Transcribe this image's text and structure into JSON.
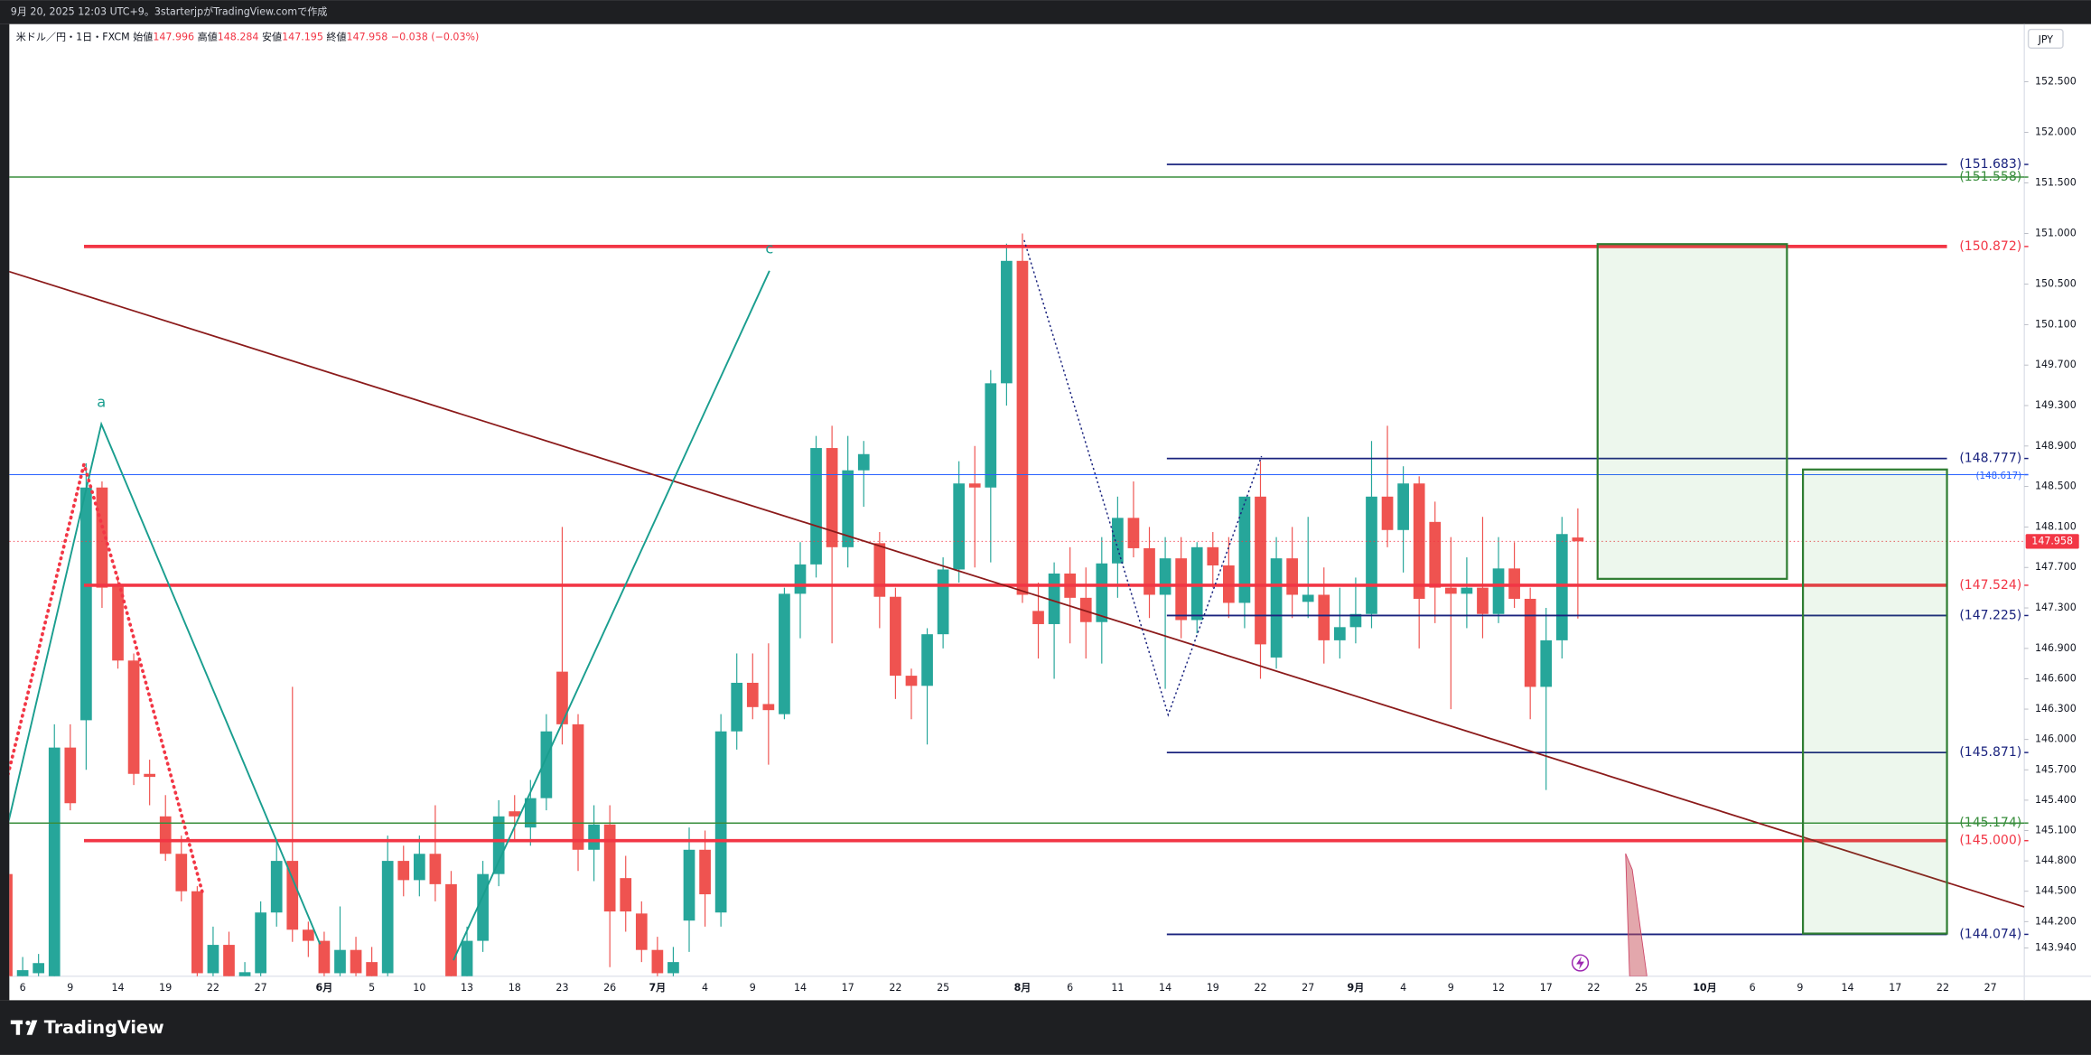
{
  "header": {
    "caption": "9月 20, 2025 12:03 UTC+9。3starterjpがTradingView.comで作成"
  },
  "footer": {
    "brand": "TradingView"
  },
  "chart_data": {
    "type": "candlestick",
    "symbol": "米ドル／円・1日・FXCM",
    "legend_labels": {
      "open": "始値",
      "high": "高値",
      "low": "安値",
      "close": "終値"
    },
    "change": {
      "value": -0.038,
      "label": "−0.038"
    },
    "change_pct": {
      "value": -0.03,
      "label": "(−0.03%)"
    },
    "y_unit": "JPY",
    "up_color": "#26a69a",
    "down_color": "#ef5350",
    "categories": [
      null,
      "6",
      null,
      null,
      "9",
      null,
      null,
      "14",
      null,
      null,
      "19",
      null,
      null,
      "22",
      null,
      null,
      "27",
      null,
      null,
      null,
      "6月",
      null,
      null,
      "5",
      null,
      null,
      "10",
      null,
      null,
      "13",
      null,
      null,
      "18",
      null,
      null,
      "23",
      null,
      null,
      "26",
      null,
      null,
      "7月",
      null,
      null,
      "4",
      null,
      null,
      "9",
      null,
      null,
      "14",
      null,
      null,
      "17",
      null,
      null,
      "22",
      null,
      null,
      "25",
      null,
      null,
      null,
      null,
      "8月",
      null,
      null,
      "6",
      null,
      null,
      "11",
      null,
      null,
      "14",
      null,
      null,
      "19",
      null,
      null,
      "22",
      null,
      null,
      "27",
      null,
      null,
      "9月",
      null,
      null,
      "4",
      null,
      null,
      "9",
      null,
      null,
      "12",
      null,
      null,
      "17",
      null,
      null,
      "22",
      null,
      null,
      "25",
      null,
      null,
      null,
      "10月",
      null,
      null,
      "6",
      null,
      null,
      "9",
      null,
      null,
      "14",
      null,
      null,
      "17",
      null,
      null,
      "22",
      null,
      null,
      "27"
    ],
    "ohlc": {
      "open": [
        144.67,
        143.62,
        143.69,
        143.62,
        145.92,
        146.19,
        148.49,
        147.52,
        146.78,
        145.66,
        145.24,
        144.87,
        144.5,
        143.69,
        143.97,
        143.62,
        143.69,
        144.29,
        144.8,
        144.12,
        144.01,
        143.69,
        143.92,
        143.8,
        143.69,
        144.8,
        144.61,
        144.87,
        144.57,
        143.62,
        144.01,
        144.67,
        145.29,
        145.13,
        145.42,
        146.67,
        146.15,
        144.91,
        145.16,
        144.63,
        144.28,
        143.92,
        143.69,
        144.21,
        144.91,
        144.29,
        146.08,
        146.56,
        146.35,
        146.25,
        147.44,
        147.73,
        148.88,
        147.9,
        148.66,
        147.94,
        147.41,
        146.63,
        146.53,
        147.04,
        147.68,
        148.53,
        148.49,
        149.52,
        150.73,
        147.27,
        147.14,
        147.64,
        147.4,
        147.16,
        147.74,
        148.19,
        147.89,
        147.43,
        147.79,
        147.18,
        147.9,
        147.72,
        147.35,
        148.4,
        146.81,
        147.79,
        147.36,
        147.43,
        146.98,
        147.11,
        147.24,
        148.4,
        148.07,
        148.53,
        148.15,
        147.5,
        147.44,
        147.5,
        147.24,
        147.69,
        147.39,
        146.52,
        146.98,
        147.996,
        null,
        null,
        null,
        null,
        null,
        null,
        null,
        null,
        null,
        null,
        null,
        null,
        null,
        null,
        null,
        null,
        null,
        null,
        null,
        null,
        null,
        null,
        null,
        null,
        null,
        null
      ],
      "high": [
        144.8,
        143.85,
        143.88,
        146.15,
        146.15,
        148.73,
        148.55,
        147.62,
        146.85,
        145.8,
        145.45,
        145.05,
        144.55,
        144.15,
        144.1,
        143.8,
        144.4,
        145.0,
        146.52,
        144.2,
        144.1,
        144.35,
        144.05,
        143.95,
        145.05,
        144.95,
        145.05,
        145.35,
        144.7,
        144.15,
        144.8,
        145.4,
        145.45,
        145.6,
        146.25,
        148.1,
        146.25,
        145.35,
        145.35,
        144.85,
        144.4,
        144.05,
        143.95,
        145.13,
        145.1,
        146.25,
        146.85,
        146.85,
        146.95,
        147.5,
        147.95,
        149.0,
        149.1,
        149.0,
        148.95,
        148.05,
        147.5,
        146.7,
        147.1,
        147.8,
        148.75,
        148.9,
        149.65,
        150.9,
        151.0,
        147.55,
        147.75,
        147.9,
        147.7,
        148.0,
        148.4,
        148.55,
        148.1,
        148.0,
        148.0,
        147.95,
        148.05,
        148.0,
        148.4,
        148.75,
        148.0,
        148.1,
        148.2,
        147.7,
        147.5,
        147.6,
        148.95,
        149.1,
        148.7,
        148.6,
        148.35,
        148.0,
        147.8,
        148.2,
        148.0,
        147.95,
        147.5,
        147.3,
        148.2,
        148.284,
        null,
        null,
        null,
        null,
        null,
        null,
        null,
        null,
        null,
        null,
        null,
        null,
        null,
        null,
        null,
        null,
        null,
        null,
        null,
        null,
        null,
        null,
        null,
        null,
        null,
        null
      ],
      "low": [
        143.5,
        143.55,
        143.55,
        143.55,
        145.3,
        145.7,
        147.3,
        146.7,
        145.55,
        145.35,
        144.8,
        144.4,
        143.55,
        143.6,
        143.55,
        143.5,
        143.6,
        144.15,
        144.0,
        143.85,
        143.55,
        143.6,
        143.6,
        143.55,
        143.6,
        144.45,
        144.45,
        144.4,
        143.5,
        143.55,
        143.9,
        144.55,
        145.0,
        144.95,
        145.3,
        145.95,
        144.7,
        144.6,
        143.75,
        144.1,
        143.8,
        143.55,
        143.5,
        143.9,
        144.15,
        144.15,
        145.9,
        146.2,
        145.75,
        146.2,
        147.0,
        147.6,
        146.95,
        147.7,
        148.3,
        147.1,
        146.4,
        146.2,
        145.95,
        146.9,
        147.55,
        147.7,
        147.75,
        149.3,
        147.35,
        146.8,
        146.6,
        146.95,
        146.8,
        146.75,
        147.4,
        147.8,
        147.2,
        146.5,
        147.0,
        147.05,
        147.5,
        147.2,
        147.1,
        146.6,
        146.7,
        147.2,
        147.2,
        146.75,
        146.8,
        146.95,
        147.1,
        147.9,
        147.65,
        146.9,
        147.15,
        146.3,
        147.1,
        147.0,
        147.15,
        147.3,
        146.2,
        145.5,
        146.8,
        147.195,
        null,
        null,
        null,
        null,
        null,
        null,
        null,
        null,
        null,
        null,
        null,
        null,
        null,
        null,
        null,
        null,
        null,
        null,
        null,
        null,
        null,
        null,
        null,
        null,
        null,
        null
      ],
      "close": [
        143.55,
        143.72,
        143.79,
        145.92,
        145.37,
        148.49,
        147.5,
        146.78,
        145.66,
        145.63,
        144.87,
        144.5,
        143.69,
        143.97,
        143.62,
        143.7,
        144.29,
        144.8,
        144.12,
        144.01,
        143.69,
        143.92,
        143.69,
        143.65,
        144.8,
        144.61,
        144.87,
        144.57,
        143.62,
        144.01,
        144.67,
        145.24,
        145.24,
        145.42,
        146.08,
        146.15,
        144.91,
        145.16,
        144.3,
        144.3,
        143.92,
        143.69,
        143.8,
        144.91,
        144.47,
        146.08,
        146.56,
        146.32,
        146.29,
        147.44,
        147.73,
        148.88,
        147.9,
        148.66,
        148.82,
        147.41,
        146.63,
        146.53,
        147.04,
        147.68,
        148.53,
        148.49,
        149.52,
        150.73,
        147.43,
        147.14,
        147.64,
        147.4,
        147.16,
        147.74,
        148.19,
        147.89,
        147.43,
        147.79,
        147.18,
        147.9,
        147.72,
        147.35,
        148.4,
        146.94,
        147.79,
        147.43,
        147.43,
        146.98,
        147.11,
        147.24,
        148.4,
        148.07,
        148.53,
        147.39,
        147.5,
        147.44,
        147.5,
        147.24,
        147.69,
        147.39,
        146.52,
        146.98,
        148.03,
        147.958,
        null,
        null,
        null,
        null,
        null,
        null,
        null,
        null,
        null,
        null,
        null,
        null,
        null,
        null,
        null,
        null,
        null,
        null,
        null,
        null,
        null,
        null,
        null,
        null,
        null,
        null
      ]
    },
    "ylim": [
      143.66,
      153.07
    ],
    "yticks": [
      {
        "value": 152.5,
        "label": "152.500"
      },
      {
        "value": 152,
        "label": "152.000"
      },
      {
        "value": 151.5,
        "label": "151.500"
      },
      {
        "value": 151,
        "label": "151.000"
      },
      {
        "value": 150.5,
        "label": "150.500"
      },
      {
        "value": 150.1,
        "label": "150.100"
      },
      {
        "value": 149.7,
        "label": "149.700"
      },
      {
        "value": 149.3,
        "label": "149.300"
      },
      {
        "value": 148.9,
        "label": "148.900"
      },
      {
        "value": 148.5,
        "label": "148.500"
      },
      {
        "value": 148.1,
        "label": "148.100"
      },
      {
        "value": 147.7,
        "label": "147.700"
      },
      {
        "value": 147.3,
        "label": "147.300"
      },
      {
        "value": 146.9,
        "label": "146.900"
      },
      {
        "value": 146.6,
        "label": "146.600"
      },
      {
        "value": 146.3,
        "label": "146.300"
      },
      {
        "value": 146,
        "label": "146.000"
      },
      {
        "value": 145.7,
        "label": "145.700"
      },
      {
        "value": 145.4,
        "label": "145.400"
      },
      {
        "value": 145.1,
        "label": "145.100"
      },
      {
        "value": 144.8,
        "label": "144.800"
      },
      {
        "value": 144.5,
        "label": "144.500"
      },
      {
        "value": 144.2,
        "label": "144.200"
      },
      {
        "value": 143.94,
        "label": "143.940"
      }
    ],
    "grid": false,
    "levels": [
      {
        "value": 151.683,
        "label": "(151.683)",
        "color": "#1a237e"
      },
      {
        "value": 151.558,
        "label": "(151.558)",
        "color": "#388e3c"
      },
      {
        "value": 150.872,
        "label": "(150.872)",
        "color": "#f23645"
      },
      {
        "value": 148.777,
        "label": "(148.777)",
        "color": "#1a237e"
      },
      {
        "value": 148.617,
        "label": "(148.617)",
        "color": "#2962ff"
      },
      {
        "value": 147.524,
        "label": "(147.524)",
        "color": "#f23645"
      },
      {
        "value": 147.225,
        "label": "(147.225)",
        "color": "#1a237e"
      },
      {
        "value": 145.871,
        "label": "(145.871)",
        "color": "#1a237e"
      },
      {
        "value": 145.174,
        "label": "(145.174)",
        "color": "#388e3c"
      },
      {
        "value": 145,
        "label": "(145.000)",
        "color": "#f23645"
      },
      {
        "value": 144.074,
        "label": "(144.074)",
        "color": "#1a237e"
      }
    ],
    "annotations": [
      "a",
      "c"
    ]
  }
}
